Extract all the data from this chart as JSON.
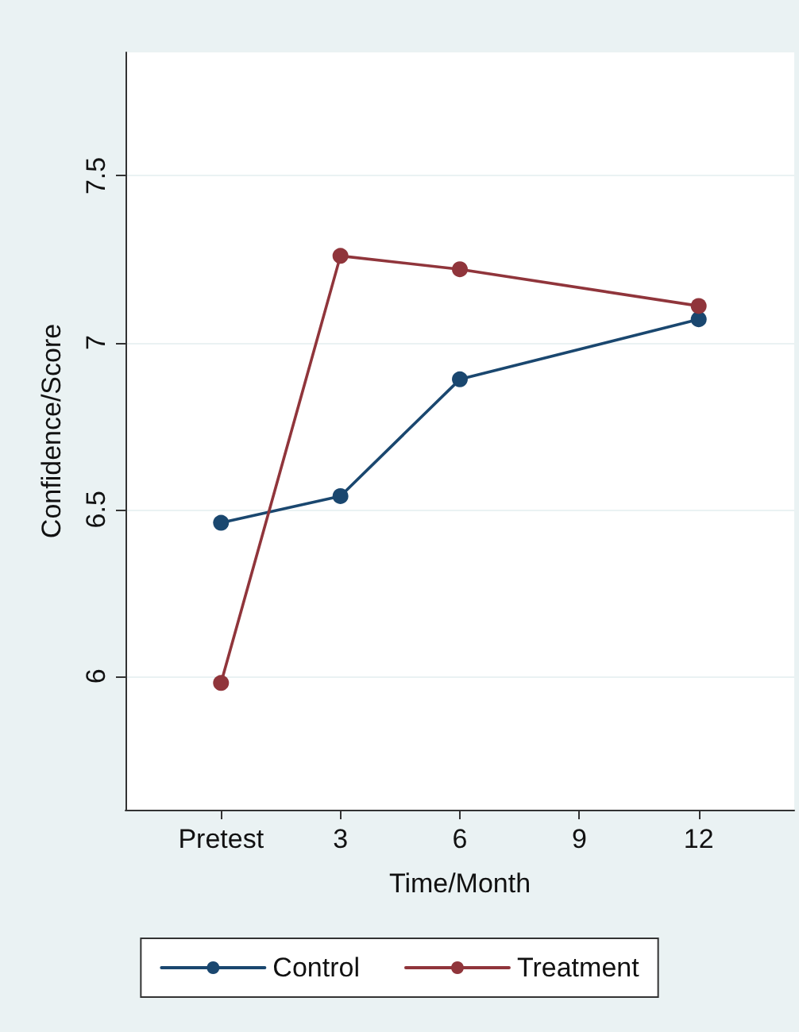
{
  "chart_data": {
    "type": "line",
    "xlabel": "Time/Month",
    "ylabel": "Confidence/Score",
    "x": [
      0,
      3,
      6,
      12
    ],
    "series": [
      {
        "name": "Control",
        "color": "#1a476f",
        "values": [
          6.46,
          6.54,
          6.89,
          7.07
        ]
      },
      {
        "name": "Treatment",
        "color": "#90353b",
        "values": [
          5.98,
          7.26,
          7.22,
          7.11
        ]
      }
    ],
    "xlim": [
      -2.4,
      14.4
    ],
    "xticks": [
      {
        "value": 0,
        "label": "Pretest"
      },
      3,
      6,
      9,
      12
    ],
    "ylim": [
      5.6,
      7.87
    ],
    "yticks": [
      6,
      6.5,
      7,
      7.5
    ],
    "grid": "y",
    "legend": "bottom",
    "marker": "circle",
    "line_style": "solid"
  }
}
